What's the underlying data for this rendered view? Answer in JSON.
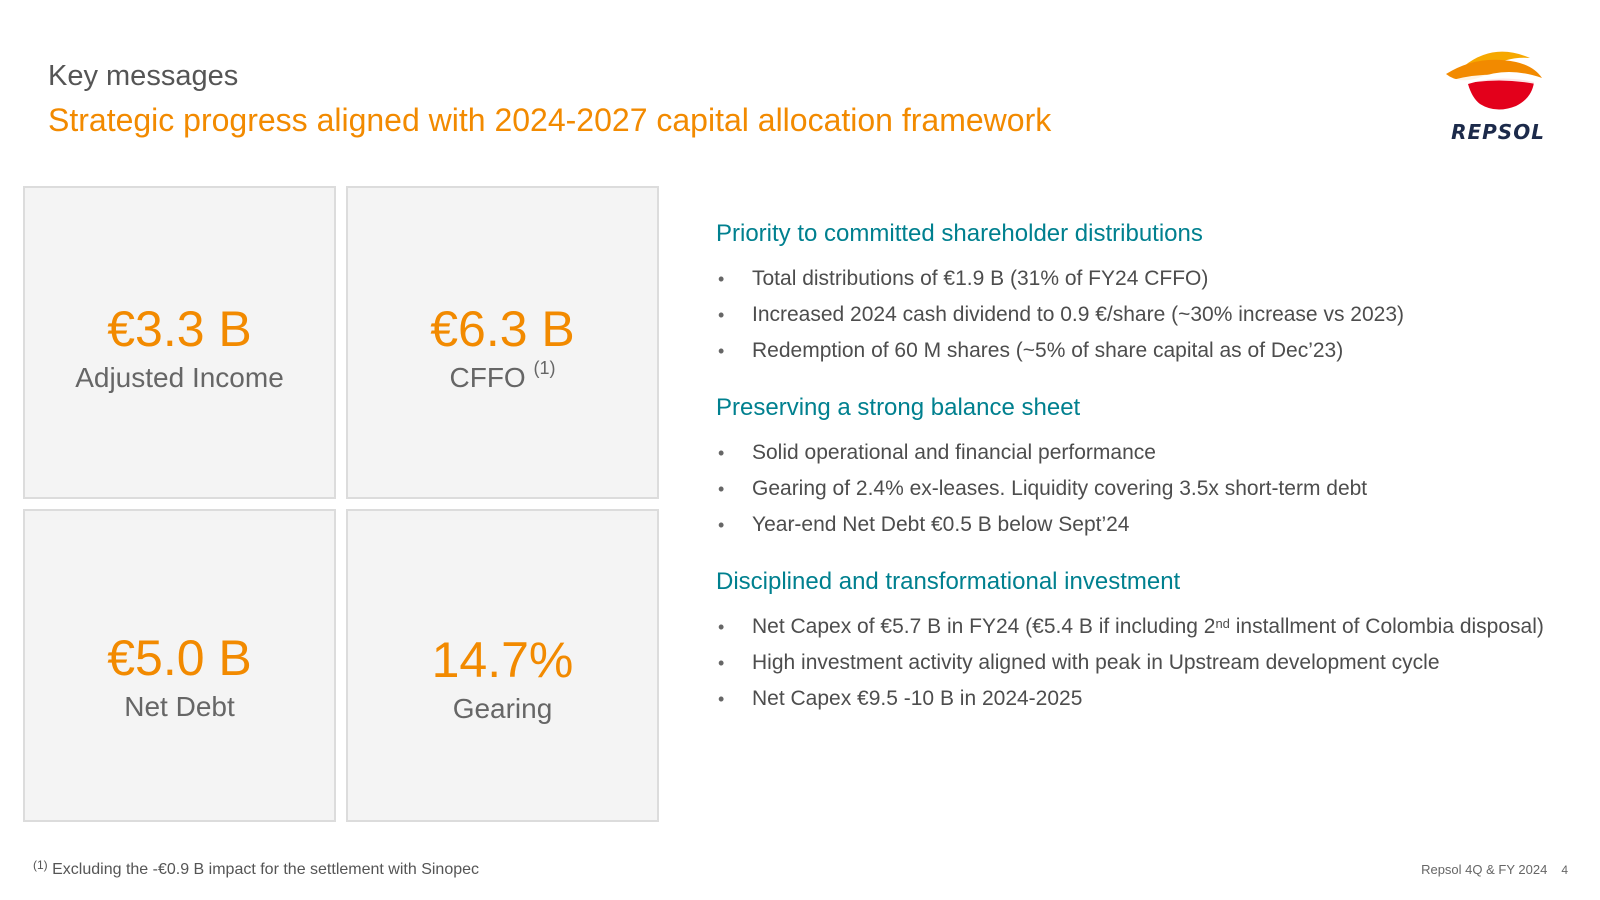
{
  "header": {
    "kicker": "Key messages",
    "title": "Strategic progress aligned with 2024-2027 capital allocation framework"
  },
  "logo": {
    "icon": "repsol-flame-logo-icon",
    "wordmark": "REPSOL"
  },
  "colors": {
    "accent_orange": "#f28a00",
    "section_teal": "#00808f",
    "tile_background": "#f4f4f4",
    "tile_border": "#dcdcdc"
  },
  "kpis": [
    {
      "value": "€3.3 B",
      "label": "Adjusted Income",
      "note": ""
    },
    {
      "value": "€6.3 B",
      "label": "CFFO",
      "note": "(1)"
    },
    {
      "value": "€5.0 B",
      "label": "Net Debt",
      "note": ""
    },
    {
      "value": "14.7%",
      "label": "Gearing",
      "note": ""
    }
  ],
  "sections": [
    {
      "title": "Priority to committed shareholder distributions",
      "bullets": [
        {
          "text": "Total distributions of €1.9 B (31% of FY24 CFFO)"
        },
        {
          "text": "Increased 2024 cash dividend to 0.9 €/share (~30% increase vs 2023)"
        },
        {
          "text": "Redemption of 60 M shares (~5% of share capital as of Dec’23)"
        }
      ]
    },
    {
      "title": "Preserving a strong balance sheet",
      "bullets": [
        {
          "text": "Solid operational and financial performance"
        },
        {
          "text": "Gearing of 2.4% ex-leases. Liquidity covering 3.5x short-term debt"
        },
        {
          "text": "Year-end Net Debt €0.5 B below Sept’24"
        }
      ]
    },
    {
      "title": "Disciplined and transformational investment",
      "bullets": [
        {
          "pre": "Net Capex of €5.7 B in FY24 (€5.4 B if including 2",
          "sup": "nd",
          "post": " installment of Colombia disposal)"
        },
        {
          "text": "High investment activity aligned with peak in Upstream development cycle"
        },
        {
          "text": "Net Capex €9.5 -10 B in 2024-2025"
        }
      ]
    }
  ],
  "bullet_symbol": "•",
  "footnote": {
    "marker": "(1)",
    "text": " Excluding the -€0.9 B impact for the settlement with Sinopec"
  },
  "footer": {
    "source": "Repsol 4Q & FY 2024",
    "page_number": "4"
  }
}
